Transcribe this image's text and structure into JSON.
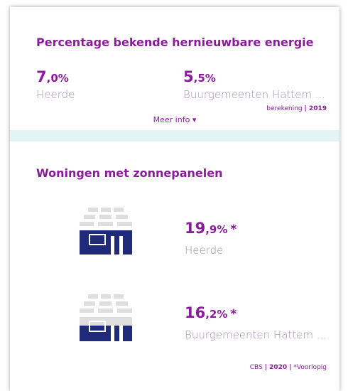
{
  "section1": {
    "title": "Percentage bekende hernieuwbare energie",
    "items": [
      {
        "value_main": "7",
        "value_rest": ",0%",
        "label": "Heerde"
      },
      {
        "value_main": "5",
        "value_rest": ",5%",
        "label": "Buurgemeenten Hattem ..."
      }
    ],
    "source": {
      "text": "berekening",
      "year": "| 2019"
    },
    "more": "Meer info ▾"
  },
  "section2": {
    "title": "Woningen met zonnepanelen",
    "items": [
      {
        "value_main": "19",
        "value_rest": ",9%",
        "mark": "*",
        "label": "Heerde"
      },
      {
        "value_main": "16",
        "value_rest": ",2%",
        "mark": "*",
        "label": "Buurgemeenten Hattem ..."
      }
    ],
    "source": {
      "org": "CBS",
      "year": "| 2020 |",
      "note": "*Voorlopig"
    }
  }
}
